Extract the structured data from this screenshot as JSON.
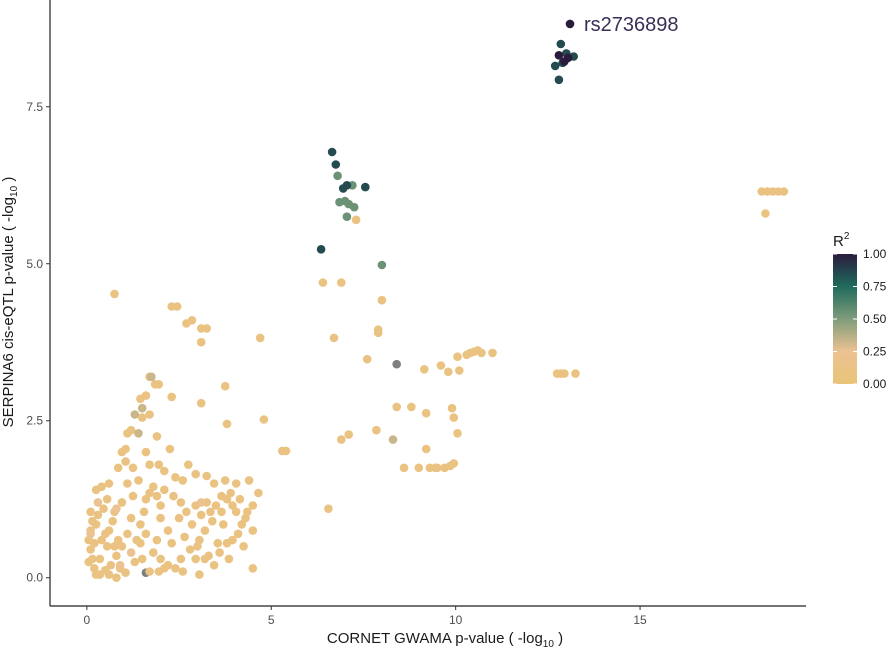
{
  "chart_data": {
    "type": "scatter",
    "title": "",
    "xlabel": "CORNET GWAMA p-value ( -log",
    "xlabel_sub": "10",
    "xlabel_tail": "  )",
    "ylabel": "SERPINA6 cis-eQTL p-value ( -log",
    "ylabel_sub": "10",
    "ylabel_tail": " )",
    "xlim": [
      -1.0,
      19.5
    ],
    "ylim": [
      -0.45,
      9.2
    ],
    "xticks": [
      {
        "v": 0,
        "label": "0"
      },
      {
        "v": 5,
        "label": "5"
      },
      {
        "v": 10,
        "label": "10"
      },
      {
        "v": 15,
        "label": "15"
      }
    ],
    "yticks": [
      {
        "v": 0,
        "label": "0.0"
      },
      {
        "v": 2.5,
        "label": "2.5"
      },
      {
        "v": 5,
        "label": "5.0"
      },
      {
        "v": 7.5,
        "label": "7.5"
      }
    ],
    "grid": false,
    "annotation": {
      "text": "rs2736898",
      "x": 13.1,
      "y": 8.82
    },
    "legend": {
      "title": "R",
      "title_sup": "2",
      "placement": "right",
      "ticks": [
        {
          "v": 1.0,
          "label": "1.00"
        },
        {
          "v": 0.75,
          "label": "0.75"
        },
        {
          "v": 0.5,
          "label": "0.50"
        },
        {
          "v": 0.25,
          "label": "0.25"
        },
        {
          "v": 0.0,
          "label": "0.00"
        }
      ],
      "gradient": [
        {
          "v": 0.0,
          "color": "#E8C478"
        },
        {
          "v": 0.25,
          "color": "#ECC292"
        },
        {
          "v": 0.5,
          "color": "#7F9C7B"
        },
        {
          "v": 0.75,
          "color": "#1F6B5C"
        },
        {
          "v": 1.0,
          "color": "#2B1C3D"
        }
      ]
    },
    "na_color": "#7f7f7f",
    "series": [
      {
        "r2": 1.0,
        "points": [
          [
            13.1,
            8.82
          ],
          [
            12.8,
            8.32
          ],
          [
            12.95,
            8.22
          ],
          [
            13.05,
            8.28
          ]
        ]
      },
      {
        "r2": 0.85,
        "points": [
          [
            12.85,
            8.5
          ],
          [
            12.7,
            8.15
          ],
          [
            12.8,
            7.93
          ],
          [
            13.2,
            8.3
          ],
          [
            13.0,
            8.35
          ],
          [
            12.9,
            8.2
          ],
          [
            6.65,
            6.78
          ],
          [
            6.75,
            6.58
          ],
          [
            7.55,
            6.22
          ],
          [
            7.05,
            6.25
          ],
          [
            6.95,
            6.2
          ],
          [
            6.35,
            5.23
          ]
        ]
      },
      {
        "r2": 0.55,
        "points": [
          [
            6.8,
            6.4
          ],
          [
            7.0,
            6.0
          ],
          [
            6.85,
            5.98
          ],
          [
            7.1,
            5.95
          ],
          [
            7.25,
            5.9
          ],
          [
            7.2,
            6.25
          ],
          [
            7.05,
            5.75
          ],
          [
            8.0,
            4.98
          ]
        ]
      },
      {
        "r2": 0.33,
        "points": [
          [
            1.75,
            3.2
          ],
          [
            1.3,
            2.6
          ],
          [
            1.4,
            2.3
          ],
          [
            8.3,
            2.2
          ],
          [
            1.5,
            2.7
          ]
        ]
      },
      {
        "r2": 0.25,
        "points": [
          [
            0.1,
            0.7
          ],
          [
            0.3,
            1.2
          ],
          [
            0.8,
            1.1
          ],
          [
            1.2,
            0.4
          ],
          [
            0.9,
            0.2
          ],
          [
            3.1,
            1.2
          ]
        ]
      },
      {
        "r2": 0.1,
        "points": [
          [
            7.3,
            5.7
          ],
          [
            6.4,
            4.7
          ],
          [
            6.9,
            4.7
          ],
          [
            8.0,
            4.42
          ],
          [
            7.9,
            3.9
          ],
          [
            6.7,
            3.82
          ],
          [
            7.9,
            3.95
          ],
          [
            7.6,
            3.48
          ],
          [
            7.1,
            2.28
          ],
          [
            6.9,
            2.2
          ],
          [
            7.85,
            2.35
          ],
          [
            8.4,
            2.72
          ],
          [
            8.8,
            2.72
          ],
          [
            9.2,
            2.62
          ],
          [
            9.15,
            3.32
          ],
          [
            9.6,
            3.38
          ],
          [
            9.8,
            3.28
          ],
          [
            10.05,
            3.52
          ],
          [
            10.1,
            3.3
          ],
          [
            10.3,
            3.55
          ],
          [
            10.4,
            3.58
          ],
          [
            10.5,
            3.6
          ],
          [
            10.6,
            3.62
          ],
          [
            10.7,
            3.58
          ],
          [
            11.0,
            3.58
          ],
          [
            9.9,
            2.7
          ],
          [
            9.95,
            2.55
          ],
          [
            10.05,
            2.3
          ],
          [
            8.6,
            1.75
          ],
          [
            9.0,
            1.75
          ],
          [
            9.3,
            1.75
          ],
          [
            9.5,
            1.75
          ],
          [
            9.7,
            1.75
          ],
          [
            9.85,
            1.78
          ],
          [
            9.95,
            1.82
          ],
          [
            9.2,
            2.05
          ],
          [
            9.45,
            1.75
          ],
          [
            12.75,
            3.25
          ],
          [
            12.85,
            3.25
          ],
          [
            12.95,
            3.25
          ],
          [
            13.25,
            3.25
          ],
          [
            18.3,
            6.15
          ],
          [
            18.45,
            6.15
          ],
          [
            18.6,
            6.15
          ],
          [
            18.75,
            6.15
          ],
          [
            18.9,
            6.15
          ],
          [
            18.4,
            5.8
          ],
          [
            4.7,
            3.82
          ],
          [
            5.4,
            2.02
          ],
          [
            5.3,
            2.02
          ],
          [
            4.8,
            2.52
          ],
          [
            6.55,
            1.1
          ],
          [
            0.75,
            4.52
          ],
          [
            2.3,
            4.32
          ],
          [
            2.45,
            4.32
          ],
          [
            2.7,
            4.05
          ],
          [
            2.85,
            4.1
          ],
          [
            3.1,
            3.97
          ],
          [
            3.25,
            3.97
          ],
          [
            3.1,
            3.75
          ],
          [
            3.75,
            3.05
          ],
          [
            3.1,
            2.78
          ],
          [
            3.8,
            2.45
          ],
          [
            2.3,
            2.88
          ],
          [
            1.7,
            3.2
          ],
          [
            1.85,
            3.08
          ],
          [
            1.95,
            3.08
          ],
          [
            1.6,
            2.9
          ],
          [
            1.45,
            2.85
          ],
          [
            1.5,
            2.55
          ],
          [
            1.7,
            2.6
          ],
          [
            1.2,
            2.35
          ],
          [
            1.1,
            2.3
          ],
          [
            0.95,
            2.0
          ],
          [
            1.05,
            2.05
          ],
          [
            1.6,
            2.0
          ],
          [
            1.9,
            2.25
          ],
          [
            2.25,
            2.05
          ],
          [
            1.7,
            1.8
          ],
          [
            1.95,
            1.8
          ],
          [
            2.1,
            1.7
          ],
          [
            2.4,
            1.6
          ],
          [
            2.6,
            1.55
          ],
          [
            2.75,
            1.8
          ],
          [
            2.95,
            1.65
          ],
          [
            3.25,
            1.62
          ],
          [
            3.45,
            1.5
          ],
          [
            3.65,
            1.3
          ],
          [
            3.8,
            1.25
          ],
          [
            3.95,
            1.15
          ],
          [
            4.05,
            1.05
          ],
          [
            4.2,
            0.85
          ],
          [
            4.4,
            1.55
          ],
          [
            4.5,
            1.15
          ],
          [
            4.65,
            1.35
          ],
          [
            4.35,
            1.05
          ],
          [
            4.5,
            0.75
          ],
          [
            4.25,
            0.5
          ],
          [
            4.5,
            0.15
          ],
          [
            3.95,
            0.6
          ],
          [
            3.7,
            0.85
          ],
          [
            3.55,
            0.55
          ],
          [
            3.85,
            0.3
          ],
          [
            3.45,
            0.2
          ],
          [
            3.2,
            0.3
          ],
          [
            3.05,
            0.6
          ],
          [
            2.85,
            0.85
          ],
          [
            2.65,
            0.65
          ],
          [
            2.8,
            0.45
          ],
          [
            2.55,
            0.3
          ],
          [
            2.4,
            0.15
          ],
          [
            2.3,
            0.55
          ],
          [
            2.2,
            0.75
          ],
          [
            2.0,
            0.95
          ],
          [
            1.9,
            0.6
          ],
          [
            1.8,
            0.4
          ],
          [
            1.95,
            0.1
          ],
          [
            2.1,
            0.15
          ],
          [
            2.2,
            0.2
          ],
          [
            1.7,
            0.1
          ],
          [
            1.5,
            0.3
          ],
          [
            1.3,
            0.25
          ],
          [
            1.05,
            0.08
          ],
          [
            0.9,
            0.15
          ],
          [
            0.8,
            0.35
          ],
          [
            0.65,
            0.2
          ],
          [
            0.5,
            0.12
          ],
          [
            0.35,
            0.05
          ],
          [
            0.2,
            0.15
          ],
          [
            0.15,
            0.3
          ],
          [
            0.1,
            0.45
          ],
          [
            0.05,
            0.6
          ],
          [
            0.1,
            0.75
          ],
          [
            0.2,
            0.55
          ],
          [
            0.25,
            0.85
          ],
          [
            0.3,
            1.0
          ],
          [
            0.4,
            0.6
          ],
          [
            0.55,
            0.5
          ],
          [
            0.6,
            0.75
          ],
          [
            0.7,
            0.9
          ],
          [
            0.85,
            0.6
          ],
          [
            0.95,
            0.5
          ],
          [
            1.1,
            0.7
          ],
          [
            1.2,
            0.95
          ],
          [
            1.35,
            0.6
          ],
          [
            1.45,
            0.85
          ],
          [
            1.55,
            1.05
          ],
          [
            1.6,
            1.25
          ],
          [
            1.7,
            1.35
          ],
          [
            1.8,
            1.45
          ],
          [
            1.9,
            1.3
          ],
          [
            2.0,
            1.15
          ],
          [
            2.1,
            1.4
          ],
          [
            1.4,
            1.55
          ],
          [
            1.25,
            1.3
          ],
          [
            1.1,
            1.5
          ],
          [
            0.95,
            1.2
          ],
          [
            0.75,
            1.05
          ],
          [
            0.55,
            1.25
          ],
          [
            0.4,
            1.45
          ],
          [
            0.25,
            1.4
          ],
          [
            0.1,
            1.05
          ],
          [
            0.45,
            1.1
          ],
          [
            0.6,
            1.5
          ],
          [
            0.15,
            0.9
          ],
          [
            0.35,
            0.3
          ],
          [
            0.5,
            0.7
          ],
          [
            0.75,
            0.5
          ],
          [
            2.5,
            0.95
          ],
          [
            2.7,
            1.05
          ],
          [
            2.95,
            1.15
          ],
          [
            3.1,
            1.0
          ],
          [
            3.25,
            1.2
          ],
          [
            3.35,
            1.05
          ],
          [
            3.5,
            1.15
          ],
          [
            3.65,
            1.05
          ],
          [
            3.4,
            0.9
          ],
          [
            3.2,
            0.75
          ],
          [
            3.0,
            0.5
          ],
          [
            2.95,
            0.3
          ],
          [
            3.3,
            0.35
          ],
          [
            3.6,
            0.4
          ],
          [
            3.8,
            0.55
          ],
          [
            4.1,
            0.7
          ],
          [
            4.3,
            0.95
          ],
          [
            4.15,
            1.25
          ],
          [
            4.05,
            1.5
          ],
          [
            3.9,
            1.35
          ],
          [
            3.75,
            1.55
          ],
          [
            2.35,
            1.3
          ],
          [
            2.55,
            1.2
          ],
          [
            1.25,
            1.75
          ],
          [
            1.05,
            1.85
          ],
          [
            0.85,
            1.75
          ],
          [
            2.6,
            0.1
          ],
          [
            3.05,
            0.05
          ],
          [
            0.05,
            0.25
          ],
          [
            0.25,
            0.05
          ],
          [
            0.6,
            0.05
          ],
          [
            0.8,
            0.0
          ],
          [
            1.45,
            0.55
          ],
          [
            1.6,
            0.7
          ],
          [
            2.0,
            0.3
          ]
        ]
      },
      {
        "r2": null,
        "points": [
          [
            8.4,
            3.4
          ],
          [
            1.6,
            0.08
          ]
        ]
      }
    ]
  }
}
